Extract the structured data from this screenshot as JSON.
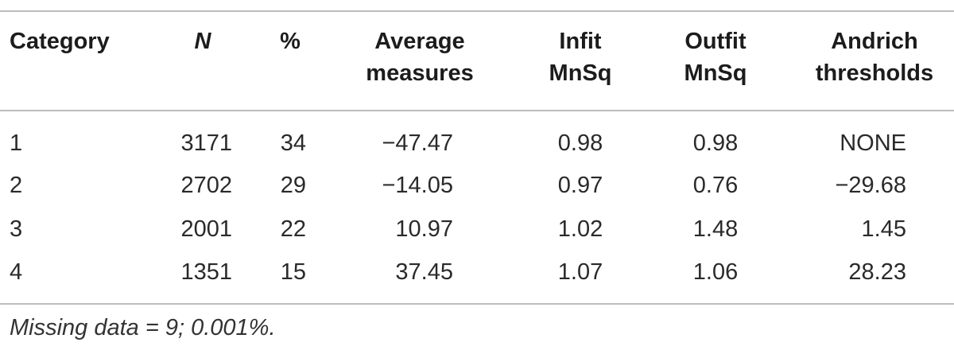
{
  "table": {
    "headers": [
      {
        "key": "category",
        "lines": [
          "Category"
        ],
        "italic": false
      },
      {
        "key": "n",
        "lines": [
          "N"
        ],
        "italic": true
      },
      {
        "key": "pct",
        "lines": [
          "%"
        ],
        "italic": false
      },
      {
        "key": "avg",
        "lines": [
          "Average",
          "measures"
        ],
        "italic": false
      },
      {
        "key": "infit",
        "lines": [
          "Infit",
          "MnSq"
        ],
        "italic": false
      },
      {
        "key": "outfit",
        "lines": [
          "Outfit",
          "MnSq"
        ],
        "italic": false
      },
      {
        "key": "andrich",
        "lines": [
          "Andrich",
          "thresholds"
        ],
        "italic": false
      }
    ],
    "rows": [
      [
        "1",
        "3171",
        "34",
        "−47.47",
        "0.98",
        "0.98",
        "NONE"
      ],
      [
        "2",
        "2702",
        "29",
        "−14.05",
        "0.97",
        "0.76",
        "−29.68"
      ],
      [
        "3",
        "2001",
        "22",
        "10.97",
        "1.02",
        "1.48",
        "1.45"
      ],
      [
        "4",
        "1351",
        "15",
        "37.45",
        "1.07",
        "1.06",
        "28.23"
      ]
    ]
  },
  "footnote": "Missing data = 9; 0.001%."
}
